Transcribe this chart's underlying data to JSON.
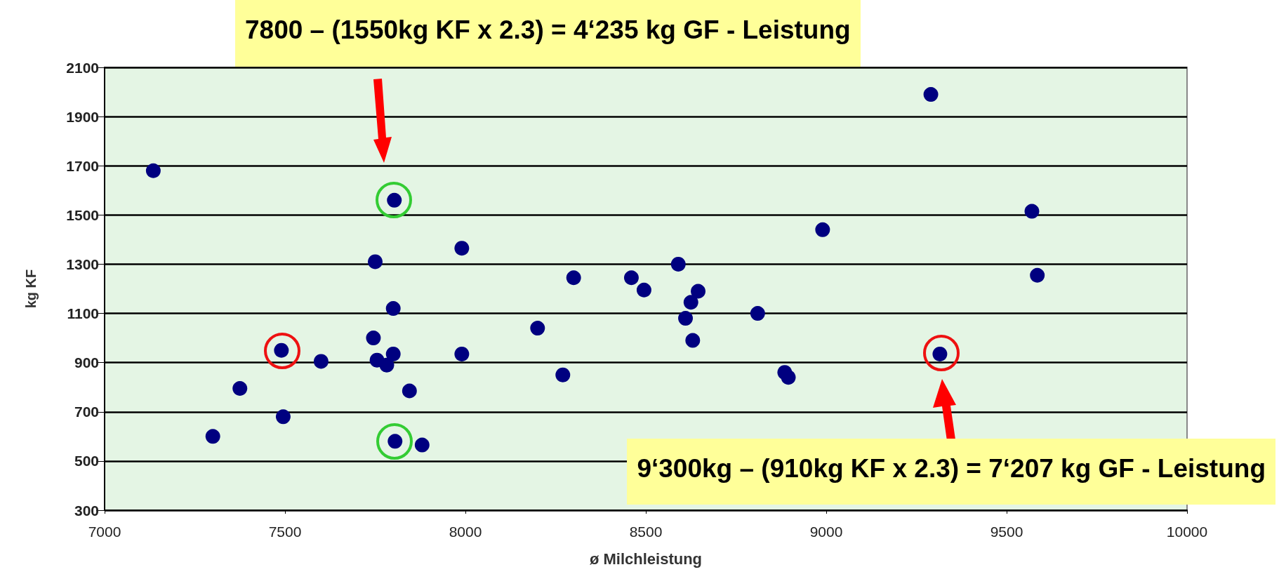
{
  "chart_data": {
    "type": "scatter",
    "xlabel": "ø Milchleistung",
    "ylabel": "kg KF",
    "x": [
      7135,
      9290,
      7803,
      8990,
      9570,
      9585,
      7990,
      7750,
      8300,
      8460,
      8495,
      8590,
      8645,
      8625,
      8610,
      8630,
      8810,
      7800,
      8200,
      7745,
      7990,
      7490,
      7600,
      7755,
      7782,
      7800,
      8270,
      8885,
      8895,
      9315,
      7375,
      7845,
      7495,
      7300,
      7805,
      7880
    ],
    "series": [
      {
        "color": "#000080",
        "values": [
          1680,
          1990,
          1560,
          1440,
          1515,
          1255,
          1365,
          1310,
          1245,
          1245,
          1195,
          1300,
          1190,
          1145,
          1080,
          990,
          1100,
          1120,
          1040,
          1000,
          935,
          950,
          905,
          910,
          890,
          935,
          850,
          860,
          840,
          935,
          795,
          785,
          680,
          600,
          580,
          565
        ]
      }
    ],
    "xlim": [
      7000,
      10000
    ],
    "xticks": [
      7000,
      7500,
      8000,
      8500,
      9000,
      9500,
      10000
    ],
    "ylim": [
      300,
      2100
    ],
    "yticks": [
      300,
      500,
      700,
      900,
      1100,
      1300,
      1500,
      1700,
      1900,
      2100
    ],
    "grid": "y",
    "marker": "circle",
    "annotations": [
      "7800 – (1550kg KF x 2.3) = 4‘235 kg GF - Leistung",
      "9‘300kg – (910kg KF x 2.3) = 7‘207 kg GF - Leistung"
    ]
  }
}
